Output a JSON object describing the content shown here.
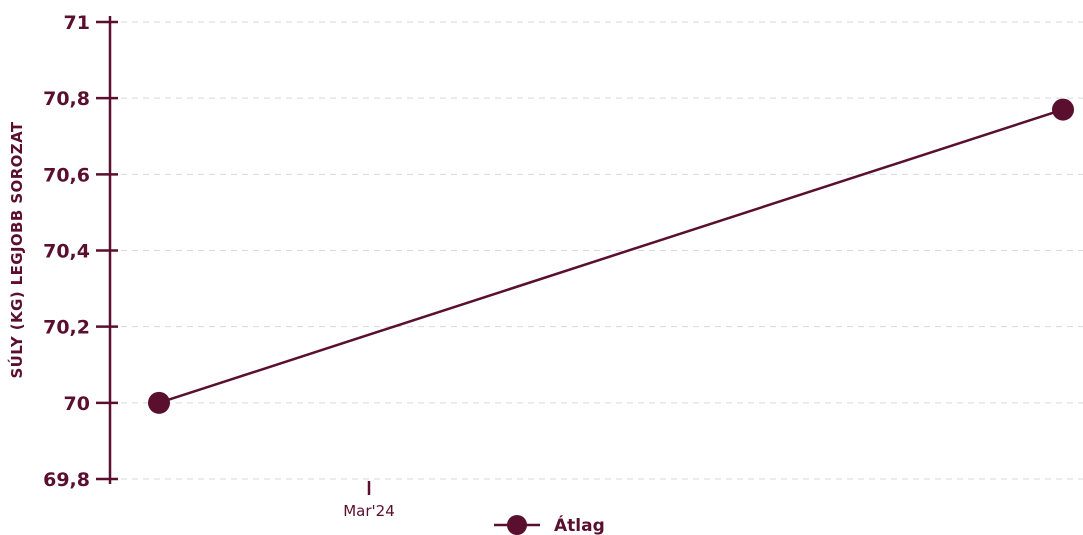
{
  "colors": {
    "accent": "#5a0f2e",
    "grid": "#d9d9d9",
    "background": "#ffffff"
  },
  "chart_data": {
    "type": "line",
    "title": "",
    "xlabel": "",
    "ylabel": "SÚLY (KG) LEGJOBB SOROZAT",
    "ylim": [
      69.8,
      71
    ],
    "yticks": [
      "69,8",
      "70",
      "70,2",
      "70,4",
      "70,6",
      "70,8",
      "71"
    ],
    "yticks_values": [
      69.8,
      70,
      70.2,
      70.4,
      70.6,
      70.8,
      71
    ],
    "xticks": [
      "Mar'24"
    ],
    "grid": true,
    "legend_position": "bottom",
    "series": [
      {
        "name": "Átlag",
        "points": [
          {
            "x": "2024-02-01",
            "y": 70
          },
          {
            "x": "2024-05-15",
            "y": 70.77
          }
        ]
      }
    ]
  }
}
